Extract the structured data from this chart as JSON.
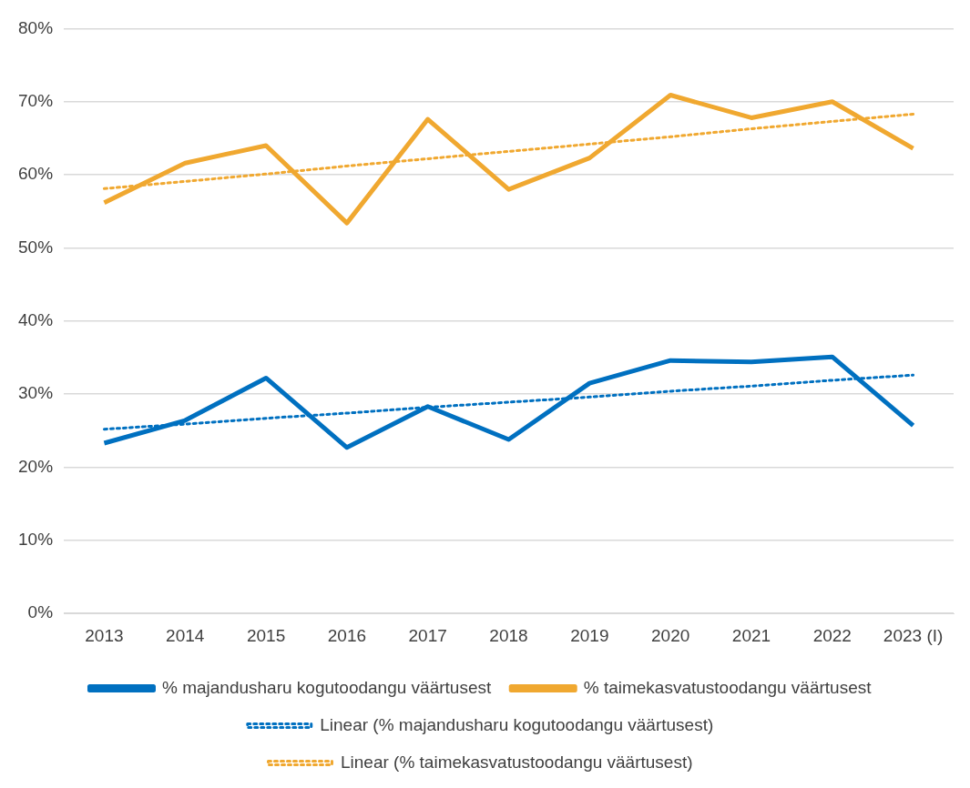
{
  "chart_data": {
    "type": "line",
    "categories": [
      "2013",
      "2014",
      "2015",
      "2016",
      "2017",
      "2018",
      "2019",
      "2020",
      "2021",
      "2022",
      "2023 (I)"
    ],
    "series": [
      {
        "name": "% majandusharu kogutoodangu väärtusest",
        "color": "#0070c0",
        "values": [
          23.3,
          26.4,
          32.2,
          22.7,
          28.3,
          23.8,
          31.5,
          34.6,
          34.4,
          35.1,
          25.7
        ]
      },
      {
        "name": "% taimekasvatustoodangu väärtusest",
        "color": "#f0a830",
        "values": [
          56.2,
          61.6,
          64.0,
          53.4,
          67.6,
          58.0,
          62.3,
          70.9,
          67.8,
          70.0,
          63.6
        ]
      },
      {
        "name": "Linear (% majandusharu kogutoodangu väärtusest)",
        "color": "#0070c0",
        "type": "line",
        "line_style": "dotted",
        "values": [
          25.2,
          25.9,
          26.7,
          27.4,
          28.2,
          28.9,
          29.6,
          30.4,
          31.1,
          31.9,
          32.6
        ]
      },
      {
        "name": "Linear (% taimekasvatustoodangu väärtusest)",
        "color": "#f0a830",
        "type": "line",
        "line_style": "dotted",
        "values": [
          58.1,
          59.1,
          60.1,
          61.2,
          62.2,
          63.2,
          64.2,
          65.2,
          66.3,
          67.3,
          68.3
        ]
      }
    ],
    "ylim": [
      0,
      80
    ],
    "yticks": [
      {
        "value": 0,
        "label": "0%"
      },
      {
        "value": 10,
        "label": "10%"
      },
      {
        "value": 20,
        "label": "20%"
      },
      {
        "value": 30,
        "label": "30%"
      },
      {
        "value": 40,
        "label": "40%"
      },
      {
        "value": 50,
        "label": "50%"
      },
      {
        "value": 60,
        "label": "60%"
      },
      {
        "value": 70,
        "label": "70%"
      },
      {
        "value": 80,
        "label": "80%"
      }
    ],
    "grid": "y",
    "legend": "bottom",
    "marker": "none",
    "line_style": "solid"
  }
}
